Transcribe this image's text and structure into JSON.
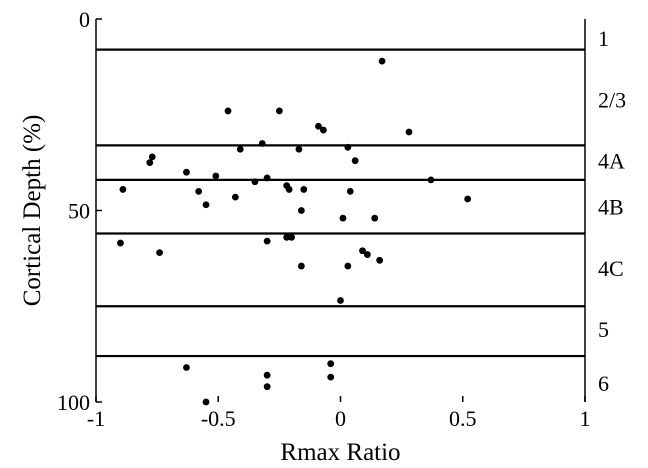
{
  "chart_data": {
    "type": "scatter",
    "xlabel": "Rmax Ratio",
    "ylabel": "Cortical Depth (%)",
    "xlim": [
      -1,
      1
    ],
    "ylim": [
      0,
      100
    ],
    "y_inverted": true,
    "x_ticks": [
      -1,
      -0.5,
      0,
      0.5,
      1
    ],
    "x_tick_labels": [
      "-1",
      "-0.5",
      "0",
      "0.5",
      "1"
    ],
    "y_ticks": [
      0,
      50,
      100
    ],
    "y_tick_labels": [
      "0",
      "50",
      "100"
    ],
    "grid": false,
    "layer_boundaries": [
      8,
      33,
      42,
      56,
      75,
      88
    ],
    "layer_labels": [
      {
        "label": "1",
        "depth": 5
      },
      {
        "label": "2/3",
        "depth": 21
      },
      {
        "label": "4A",
        "depth": 37
      },
      {
        "label": "4B",
        "depth": 49
      },
      {
        "label": "4C",
        "depth": 65
      },
      {
        "label": "5",
        "depth": 81
      },
      {
        "label": "6",
        "depth": 95
      }
    ],
    "points": [
      {
        "x": 0.17,
        "y": 11
      },
      {
        "x": -0.46,
        "y": 24
      },
      {
        "x": -0.25,
        "y": 24
      },
      {
        "x": -0.09,
        "y": 28
      },
      {
        "x": -0.07,
        "y": 29
      },
      {
        "x": 0.28,
        "y": 29.5
      },
      {
        "x": -0.32,
        "y": 32.5
      },
      {
        "x": -0.41,
        "y": 34
      },
      {
        "x": -0.17,
        "y": 34
      },
      {
        "x": 0.03,
        "y": 33.5
      },
      {
        "x": -0.77,
        "y": 36
      },
      {
        "x": -0.78,
        "y": 37.5
      },
      {
        "x": 0.06,
        "y": 37
      },
      {
        "x": -0.63,
        "y": 40
      },
      {
        "x": -0.51,
        "y": 41
      },
      {
        "x": -0.3,
        "y": 41.5
      },
      {
        "x": -0.35,
        "y": 42.5
      },
      {
        "x": 0.37,
        "y": 42
      },
      {
        "x": -0.22,
        "y": 43.5
      },
      {
        "x": -0.21,
        "y": 44.5
      },
      {
        "x": -0.15,
        "y": 44.5
      },
      {
        "x": -0.89,
        "y": 44.5
      },
      {
        "x": -0.58,
        "y": 45
      },
      {
        "x": 0.04,
        "y": 45
      },
      {
        "x": -0.43,
        "y": 46.5
      },
      {
        "x": 0.52,
        "y": 47
      },
      {
        "x": -0.55,
        "y": 48.5
      },
      {
        "x": -0.16,
        "y": 50
      },
      {
        "x": 0.01,
        "y": 52
      },
      {
        "x": 0.14,
        "y": 52
      },
      {
        "x": -0.22,
        "y": 57
      },
      {
        "x": -0.2,
        "y": 57
      },
      {
        "x": -0.3,
        "y": 58
      },
      {
        "x": -0.9,
        "y": 58.5
      },
      {
        "x": -0.74,
        "y": 61
      },
      {
        "x": 0.09,
        "y": 60.5
      },
      {
        "x": 0.11,
        "y": 61.5
      },
      {
        "x": 0.16,
        "y": 63
      },
      {
        "x": -0.16,
        "y": 64.5
      },
      {
        "x": 0.03,
        "y": 64.5
      },
      {
        "x": 0.0,
        "y": 73.5
      },
      {
        "x": -0.63,
        "y": 91
      },
      {
        "x": -0.04,
        "y": 90
      },
      {
        "x": -0.3,
        "y": 93
      },
      {
        "x": -0.04,
        "y": 93.5
      },
      {
        "x": -0.3,
        "y": 96
      },
      {
        "x": -0.55,
        "y": 100
      }
    ]
  }
}
